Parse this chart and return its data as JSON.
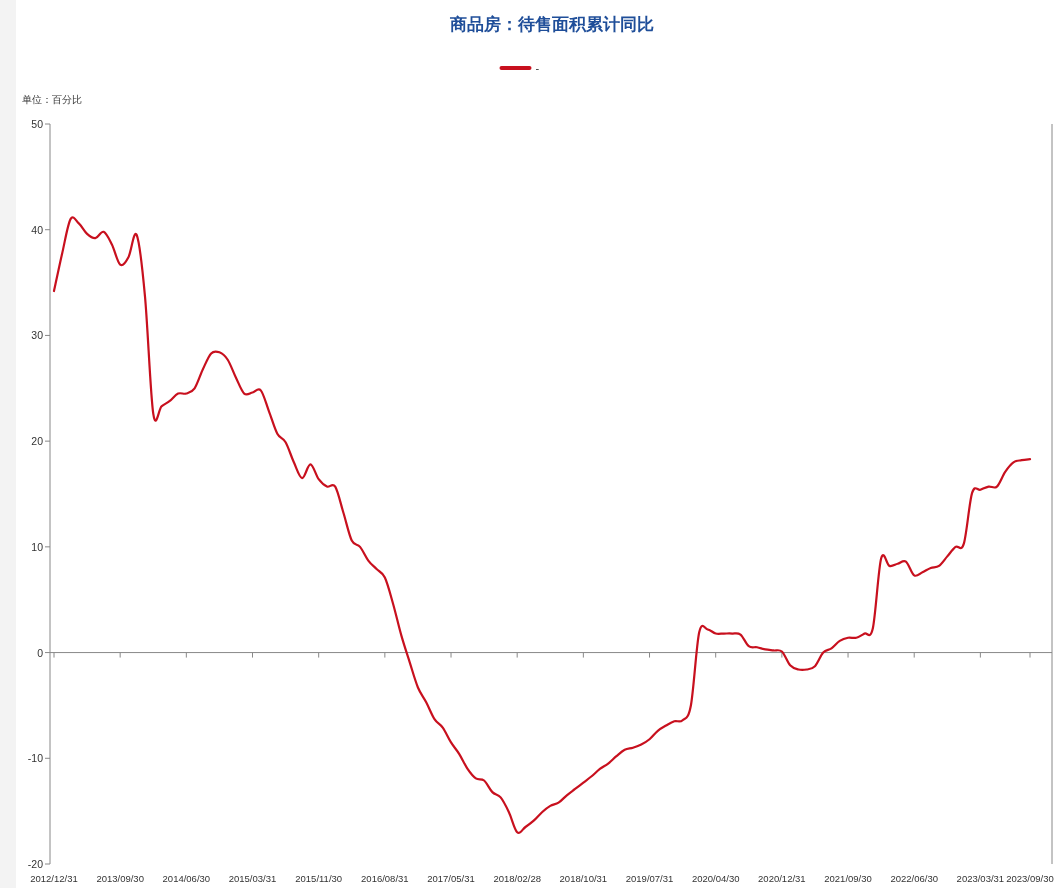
{
  "chart_data": {
    "type": "line",
    "title": "商品房：待售面积累计同比",
    "annotations": [
      "单位：百分比"
    ],
    "categories": [
      "2012/12/31",
      null,
      null,
      null,
      null,
      null,
      null,
      null,
      "2013/09/30",
      null,
      null,
      null,
      null,
      null,
      null,
      null,
      "2014/06/30",
      null,
      null,
      null,
      null,
      null,
      null,
      null,
      "2015/03/31",
      null,
      null,
      null,
      null,
      null,
      null,
      null,
      "2015/11/30",
      null,
      null,
      null,
      null,
      null,
      null,
      null,
      "2016/08/31",
      null,
      null,
      null,
      null,
      null,
      null,
      null,
      "2017/05/31",
      null,
      null,
      null,
      null,
      null,
      null,
      null,
      "2018/02/28",
      null,
      null,
      null,
      null,
      null,
      null,
      null,
      "2018/10/31",
      null,
      null,
      null,
      null,
      null,
      null,
      null,
      "2019/07/31",
      null,
      null,
      null,
      null,
      null,
      null,
      null,
      "2020/04/30",
      null,
      null,
      null,
      null,
      null,
      null,
      null,
      "2020/12/31",
      null,
      null,
      null,
      null,
      null,
      null,
      null,
      "2021/09/30",
      null,
      null,
      null,
      null,
      null,
      null,
      null,
      "2022/06/30",
      null,
      null,
      null,
      null,
      null,
      null,
      null,
      "2023/03/31",
      null,
      null,
      null,
      null,
      null,
      "2023/09/30"
    ],
    "series": [
      {
        "name": "-",
        "color": "#c8101e",
        "values": [
          34.2,
          37.8,
          41.0,
          40.6,
          39.6,
          39.2,
          39.8,
          38.6,
          36.7,
          37.4,
          39.5,
          33.7,
          22.6,
          23.3,
          23.8,
          24.5,
          24.5,
          25.0,
          26.8,
          28.3,
          28.4,
          27.7,
          26.0,
          24.5,
          24.6,
          24.8,
          22.8,
          20.7,
          19.9,
          18.0,
          16.5,
          17.8,
          16.4,
          15.7,
          15.7,
          13.2,
          10.6,
          10.0,
          8.7,
          7.9,
          7.1,
          4.6,
          1.6,
          -0.9,
          -3.3,
          -4.7,
          -6.3,
          -7.1,
          -8.5,
          -9.6,
          -11.0,
          -11.9,
          -12.1,
          -13.2,
          -13.7,
          -15.1,
          -17.0,
          -16.5,
          -15.9,
          -15.1,
          -14.5,
          -14.2,
          -13.5,
          -12.9,
          -12.3,
          -11.7,
          -11.0,
          -10.5,
          -9.8,
          -9.2,
          -9.0,
          -8.7,
          -8.2,
          -7.4,
          -6.9,
          -6.5,
          -6.4,
          -5.0,
          1.9,
          2.2,
          1.8,
          1.8,
          1.8,
          1.7,
          0.6,
          0.5,
          0.3,
          0.2,
          0.1,
          -1.2,
          -1.6,
          -1.6,
          -1.3,
          0.0,
          0.4,
          1.1,
          1.4,
          1.4,
          1.8,
          2.3,
          8.9,
          8.2,
          8.4,
          8.6,
          7.3,
          7.6,
          8.0,
          8.2,
          9.1,
          10.0,
          10.3,
          15.1,
          15.4,
          15.7,
          15.7,
          17.1,
          18.0,
          18.2,
          18.3
        ]
      }
    ],
    "ylim": [
      -20,
      50
    ],
    "yticks": [
      -20,
      -10,
      0,
      10,
      20,
      30,
      40,
      50
    ],
    "legend": "top",
    "marker": "none",
    "line_style": "solid"
  }
}
